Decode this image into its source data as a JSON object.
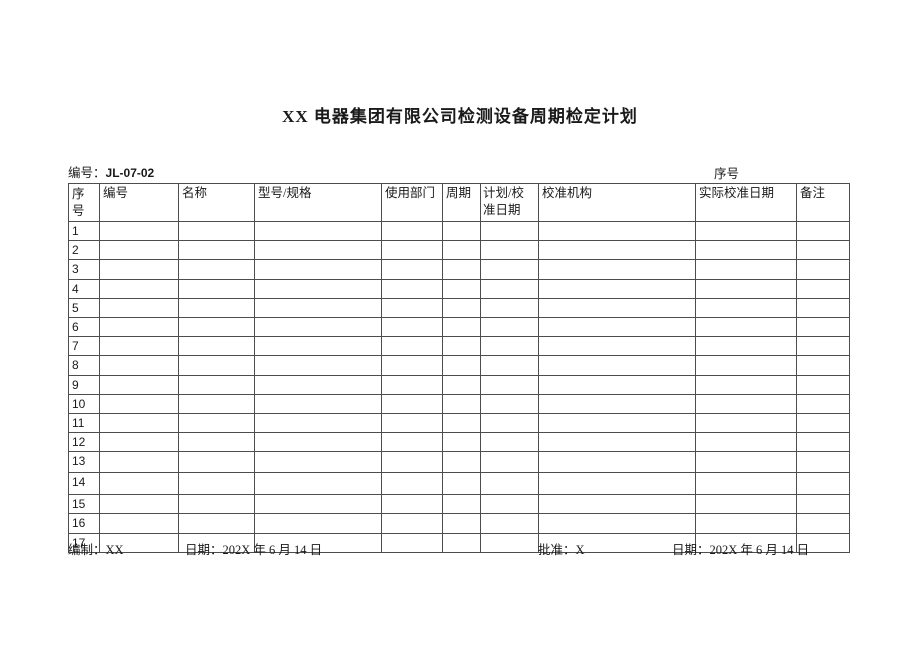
{
  "document": {
    "title": "XX 电器集团有限公司检测设备周期检定计划",
    "doc_number_label": "编号：",
    "doc_number": "JL-07-02",
    "serial_header_label": "序号"
  },
  "table": {
    "columns": [
      "序号",
      "编号",
      "名称",
      "型号/规格",
      "使用部门",
      "周期",
      "计划/校准日期",
      "校准机构",
      "实际校准日期",
      "备注"
    ],
    "row_numbers": [
      "1",
      "2",
      "3",
      "4",
      "5",
      "6",
      "7",
      "8",
      "9",
      "10",
      "11",
      "12",
      "13",
      "14",
      "15",
      "16",
      "17"
    ]
  },
  "footer": {
    "prepared_label": "编制：",
    "prepared_value": "XX",
    "prepared_date_label": "日期：",
    "prepared_date": "202X 年 6 月 14 日",
    "approved_label": "批准：",
    "approved_value": "X",
    "approved_date_label": "日期：",
    "approved_date": "202X 年 6 月 14 日"
  }
}
